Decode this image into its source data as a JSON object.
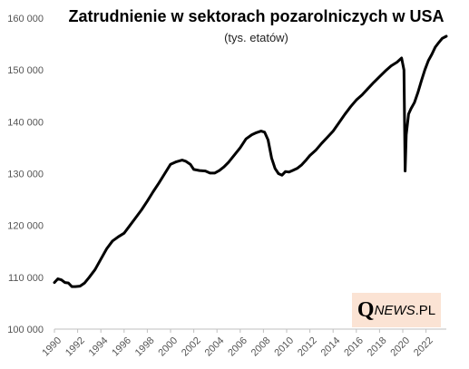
{
  "chart_data": {
    "type": "line",
    "title": "Zatrudnienie w sektorach pozarolniczych w USA",
    "subtitle": "(tys. etatów)",
    "xlabel": "",
    "ylabel": "",
    "ylim": [
      100000,
      160000
    ],
    "xlim": [
      1990,
      2023.75
    ],
    "y_ticks": [
      100000,
      110000,
      120000,
      130000,
      140000,
      150000,
      160000
    ],
    "y_tick_labels": [
      "100 000",
      "110 000",
      "120 000",
      "130 000",
      "140 000",
      "150 000",
      "160 000"
    ],
    "x_ticks": [
      1990,
      1992,
      1994,
      1996,
      1998,
      2000,
      2002,
      2004,
      2006,
      2008,
      2010,
      2012,
      2014,
      2016,
      2018,
      2020,
      2022
    ],
    "x_tick_labels": [
      "1990",
      "1992",
      "1994",
      "1996",
      "1998",
      "2000",
      "2002",
      "2004",
      "2006",
      "2008",
      "2010",
      "2012",
      "2014",
      "2016",
      "2018",
      "2020",
      "2022"
    ],
    "grid": false,
    "legend": "none",
    "series": [
      {
        "color": "#000000",
        "x": [
          1990.0,
          1990.3,
          1990.6,
          1990.9,
          1991.2,
          1991.5,
          1991.8,
          1992.2,
          1992.6,
          1993.0,
          1993.5,
          1994.0,
          1994.5,
          1995.0,
          1995.5,
          1996.0,
          1996.5,
          1997.0,
          1997.5,
          1998.0,
          1998.5,
          1999.0,
          1999.5,
          2000.0,
          2000.5,
          2001.0,
          2001.3,
          2001.7,
          2002.0,
          2002.5,
          2003.0,
          2003.4,
          2003.8,
          2004.2,
          2004.6,
          2005.0,
          2005.5,
          2006.0,
          2006.5,
          2007.0,
          2007.4,
          2007.8,
          2008.1,
          2008.4,
          2008.7,
          2009.0,
          2009.3,
          2009.6,
          2009.9,
          2010.2,
          2010.5,
          2010.9,
          2011.3,
          2011.7,
          2012.0,
          2012.5,
          2013.0,
          2013.5,
          2014.0,
          2014.5,
          2015.0,
          2015.5,
          2016.0,
          2016.5,
          2017.0,
          2017.5,
          2018.0,
          2018.5,
          2019.0,
          2019.5,
          2019.9,
          2020.1,
          2020.2,
          2020.3,
          2020.5,
          2020.7,
          2021.0,
          2021.3,
          2021.6,
          2021.9,
          2022.2,
          2022.5,
          2022.8,
          2023.1,
          2023.4,
          2023.75
        ],
        "values": [
          109000,
          109700,
          109500,
          109000,
          108900,
          108200,
          108200,
          108300,
          108900,
          110000,
          111500,
          113500,
          115500,
          117000,
          117800,
          118500,
          120000,
          121500,
          123000,
          124700,
          126500,
          128200,
          130000,
          131800,
          132300,
          132600,
          132400,
          131800,
          130800,
          130600,
          130500,
          130100,
          130100,
          130600,
          131300,
          132200,
          133600,
          135000,
          136700,
          137500,
          137900,
          138200,
          138000,
          136500,
          133000,
          131000,
          130000,
          129700,
          130400,
          130300,
          130600,
          131000,
          131700,
          132700,
          133500,
          134500,
          135800,
          137000,
          138200,
          139800,
          141400,
          142900,
          144200,
          145200,
          146400,
          147600,
          148700,
          149800,
          150800,
          151500,
          152300,
          150000,
          130500,
          137500,
          141500,
          142500,
          143700,
          145600,
          147900,
          150000,
          151800,
          153000,
          154400,
          155300,
          156100,
          156500
        ]
      }
    ]
  },
  "watermark": {
    "letter": "Q",
    "word": "NEWS",
    "suffix": ".PL",
    "background": "#fbe3d4"
  }
}
